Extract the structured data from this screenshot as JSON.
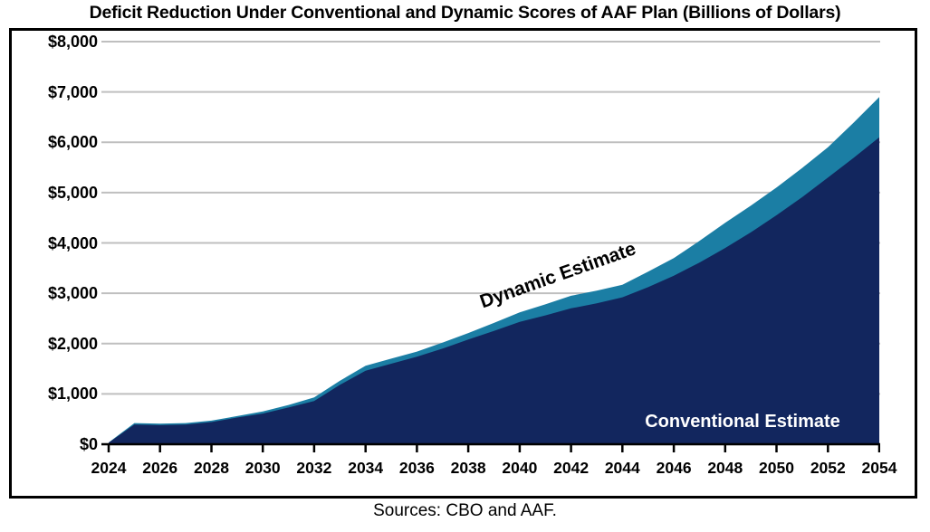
{
  "title": "Deficit Reduction Under Conventional and Dynamic Scores of AAF Plan (Billions of Dollars)",
  "source_note": "Sources: CBO and AAF.",
  "colors": {
    "conventional_fill": "#12265E",
    "dynamic_fill": "#1B7EA4",
    "gridline": "#BFBFBF",
    "axis": "#000000",
    "conventional_label_text": "#FFFFFF",
    "dynamic_label_text": "#000000"
  },
  "chart_data": {
    "type": "area",
    "title": "Deficit Reduction Under Conventional and Dynamic Scores of AAF Plan (Billions of Dollars)",
    "xlabel": "",
    "ylabel": "",
    "ylim": [
      0,
      8000
    ],
    "grid": true,
    "legend_position": "in-plot annotations",
    "x": [
      2024,
      2025,
      2026,
      2027,
      2028,
      2029,
      2030,
      2031,
      2032,
      2033,
      2034,
      2035,
      2036,
      2037,
      2038,
      2039,
      2040,
      2041,
      2042,
      2043,
      2044,
      2045,
      2046,
      2047,
      2048,
      2049,
      2050,
      2051,
      2052,
      2053,
      2054
    ],
    "x_tick_labels": [
      "2024",
      "2026",
      "2028",
      "2030",
      "2032",
      "2034",
      "2036",
      "2038",
      "2040",
      "2042",
      "2044",
      "2046",
      "2048",
      "2050",
      "2052",
      "2054"
    ],
    "y_tick_labels": [
      "$0",
      "$1,000",
      "$2,000",
      "$3,000",
      "$4,000",
      "$5,000",
      "$6,000",
      "$7,000",
      "$8,000"
    ],
    "series": [
      {
        "name": "Conventional Estimate",
        "color": "#12265E",
        "values": [
          30,
          390,
          380,
          390,
          440,
          530,
          610,
          730,
          860,
          1180,
          1460,
          1600,
          1740,
          1900,
          2080,
          2250,
          2430,
          2560,
          2700,
          2800,
          2920,
          3120,
          3350,
          3610,
          3900,
          4210,
          4550,
          4910,
          5300,
          5690,
          6100
        ]
      },
      {
        "name": "Dynamic Estimate",
        "color": "#1B7EA4",
        "values": [
          35,
          420,
          410,
          420,
          470,
          560,
          650,
          780,
          930,
          1260,
          1560,
          1700,
          1840,
          2020,
          2210,
          2410,
          2620,
          2780,
          2950,
          3050,
          3170,
          3430,
          3700,
          4040,
          4400,
          4740,
          5100,
          5490,
          5900,
          6390,
          6900
        ]
      }
    ]
  }
}
